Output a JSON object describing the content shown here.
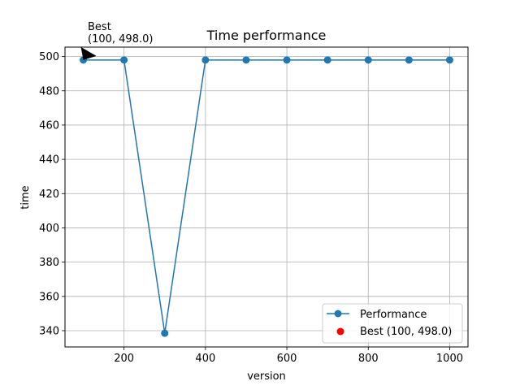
{
  "chart_data": {
    "type": "line",
    "title": "Time performance",
    "xlabel": "version",
    "ylabel": "time",
    "xlim": [
      55,
      1045
    ],
    "ylim": [
      330.5,
      505.5
    ],
    "xticks": [
      200,
      400,
      600,
      800,
      1000
    ],
    "yticks": [
      340,
      360,
      380,
      400,
      420,
      440,
      460,
      480,
      500
    ],
    "grid": true,
    "legend_position": "lower right",
    "series": [
      {
        "name": "Performance",
        "color": "#1f77b4",
        "marker": "circle",
        "x": [
          100,
          200,
          300,
          400,
          500,
          600,
          700,
          800,
          900,
          1000
        ],
        "y": [
          498.0,
          498.0,
          338.5,
          498.0,
          498.0,
          498.0,
          498.0,
          498.0,
          498.0,
          498.0
        ]
      },
      {
        "name": "Best (100, 498.0)",
        "color": "#ff0000",
        "marker": "circle",
        "x": [
          100
        ],
        "y": [
          498.0
        ]
      }
    ],
    "annotation": {
      "line1": "Best",
      "line2": "(100, 498.0)",
      "x": 100,
      "y": 498.0
    }
  }
}
